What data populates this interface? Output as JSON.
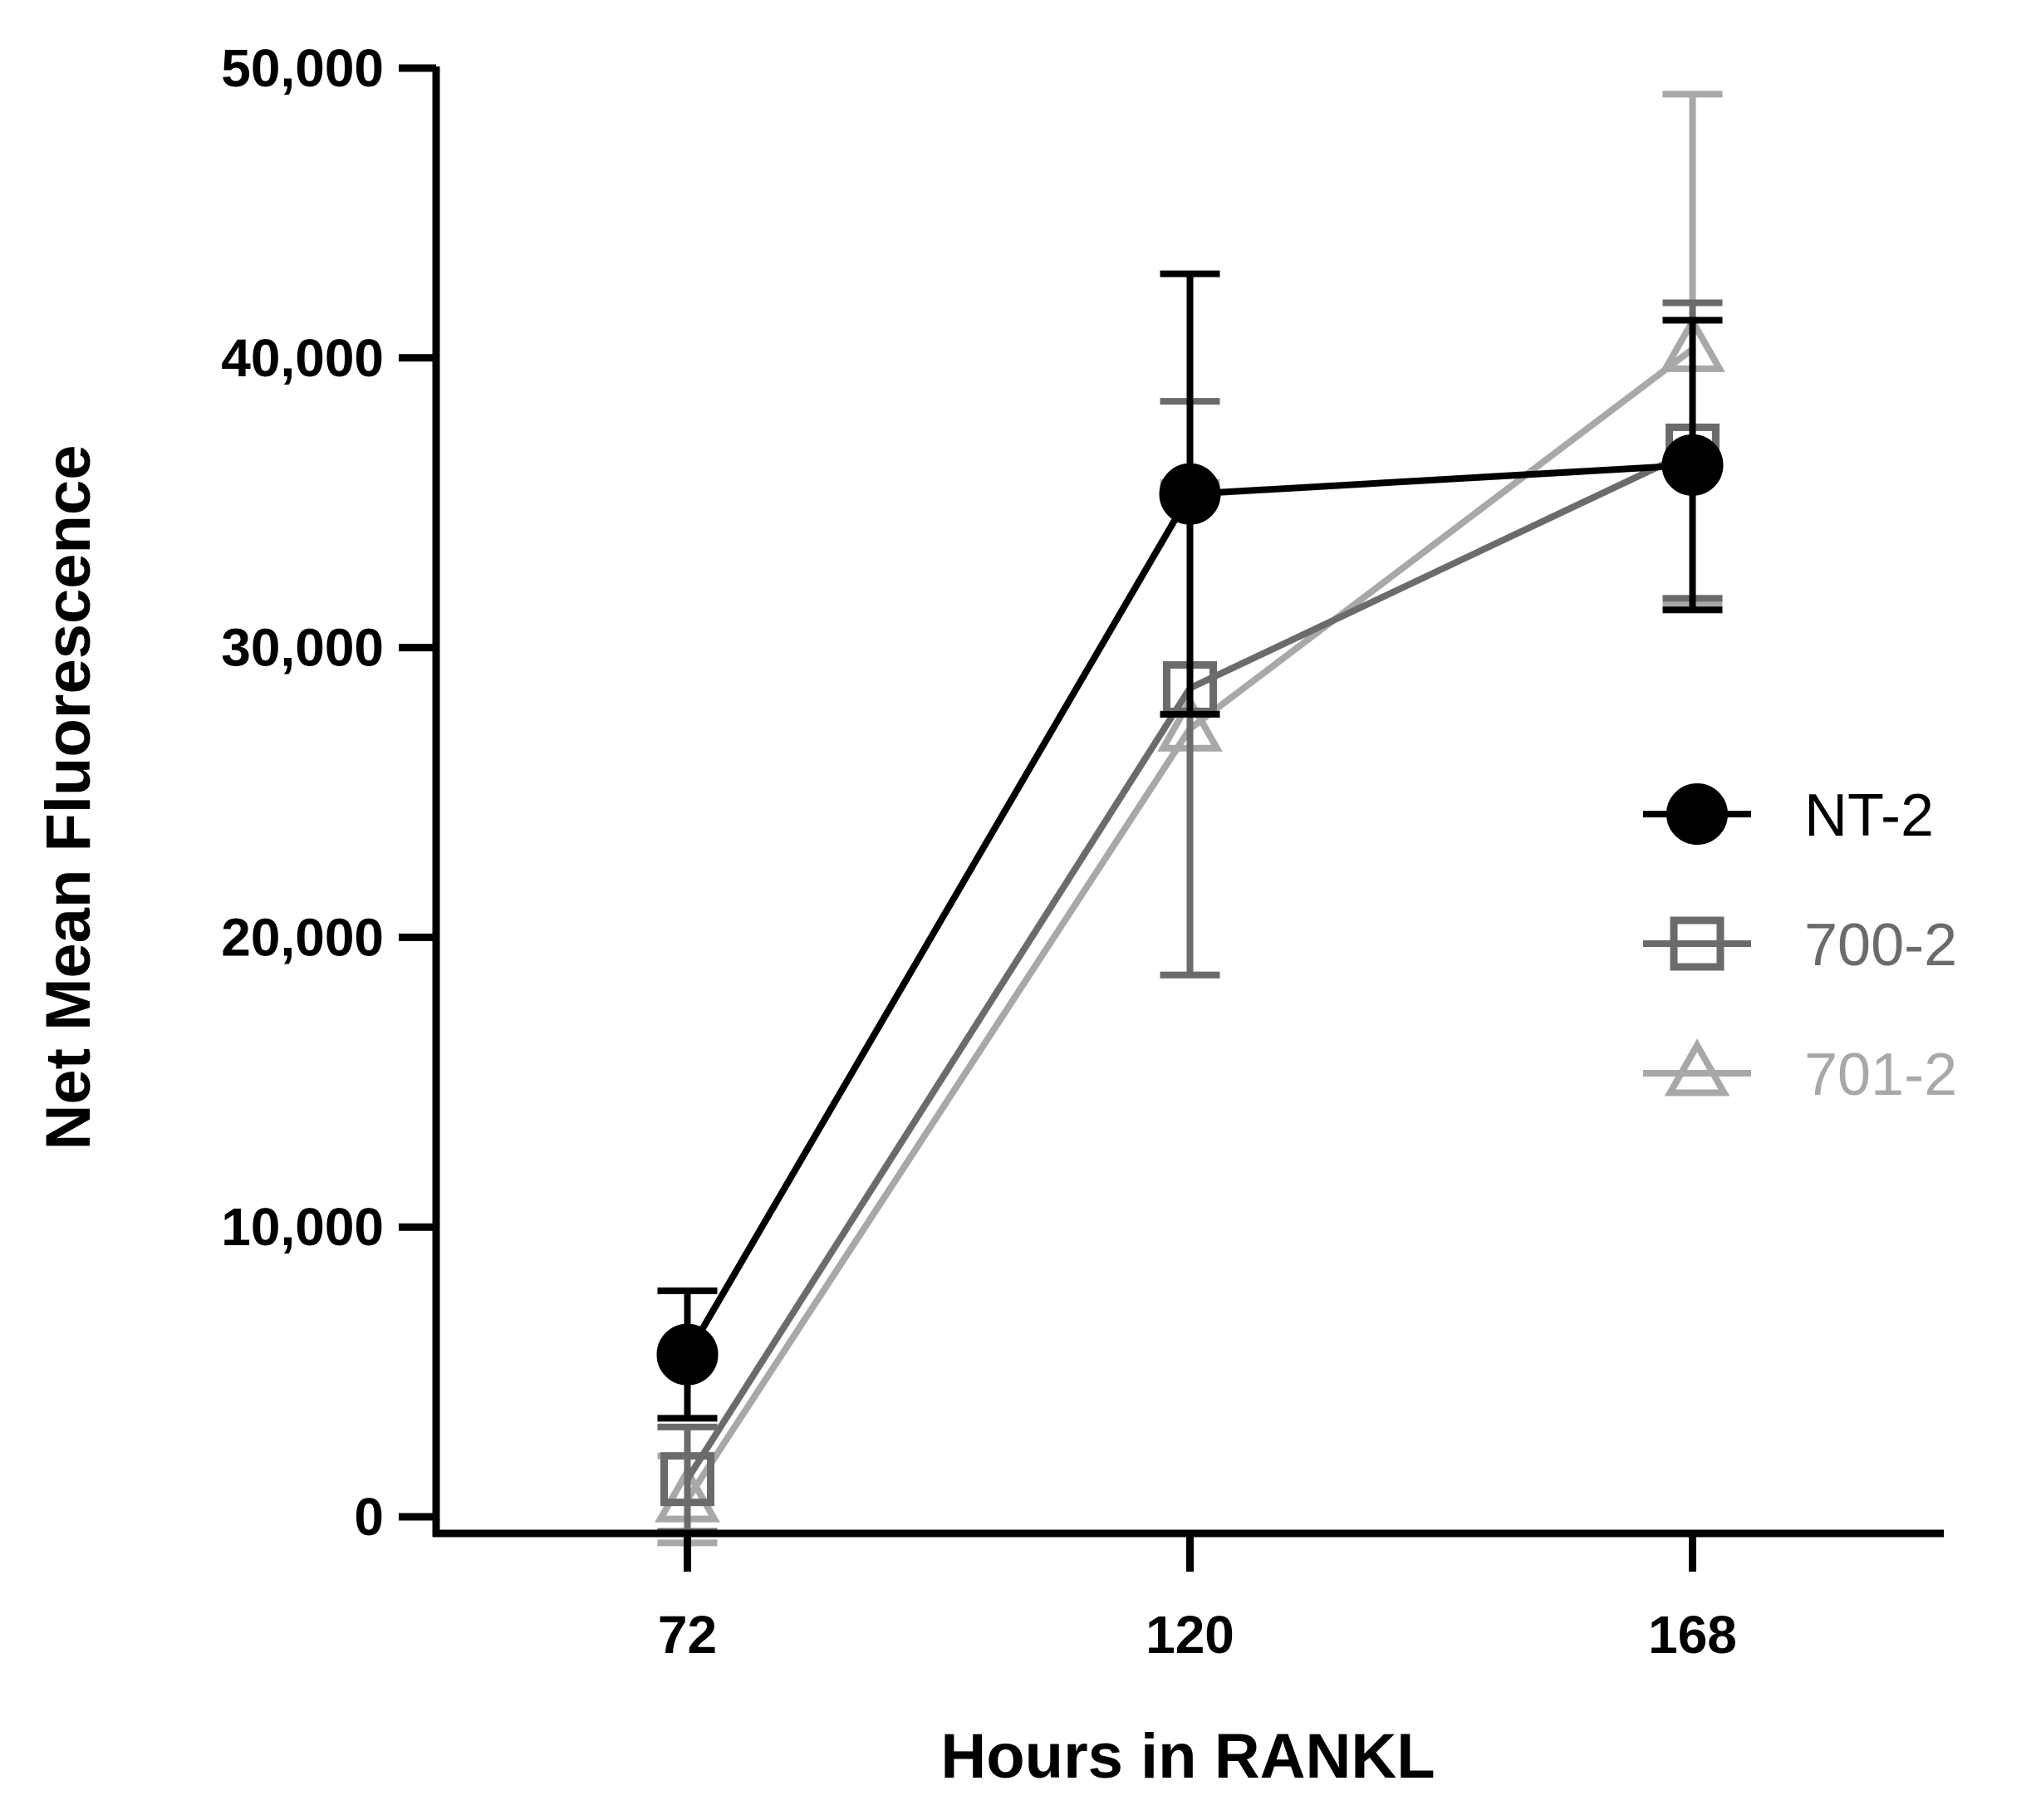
{
  "chart_data": {
    "type": "line",
    "xlabel": "Hours in RANKL",
    "ylabel": "Net Mean Fluorescence",
    "x": [
      72,
      120,
      168
    ],
    "x_tick_labels": [
      "72",
      "120",
      "168"
    ],
    "y_tick_labels": [
      "0",
      "10,000",
      "20,000",
      "30,000",
      "40,000",
      "50,000"
    ],
    "ylim": [
      0,
      50000
    ],
    "xlim": [
      48,
      192
    ],
    "grid": false,
    "legend_position": "right",
    "series": [
      {
        "name": "NT-2",
        "marker": "filled-circle",
        "color": "#000000",
        "values": [
          5600,
          35300,
          36300
        ],
        "error": [
          2200,
          7600,
          5000
        ]
      },
      {
        "name": "700-2",
        "marker": "open-square",
        "color": "#6b6b6b",
        "values": [
          1300,
          28600,
          36800
        ],
        "error": [
          1800,
          9900,
          5100
        ]
      },
      {
        "name": "701-2",
        "marker": "open-triangle",
        "color": "#a8a8a8",
        "values": [
          600,
          27200,
          40300
        ],
        "error": [
          1500,
          8500,
          8800
        ]
      }
    ]
  }
}
